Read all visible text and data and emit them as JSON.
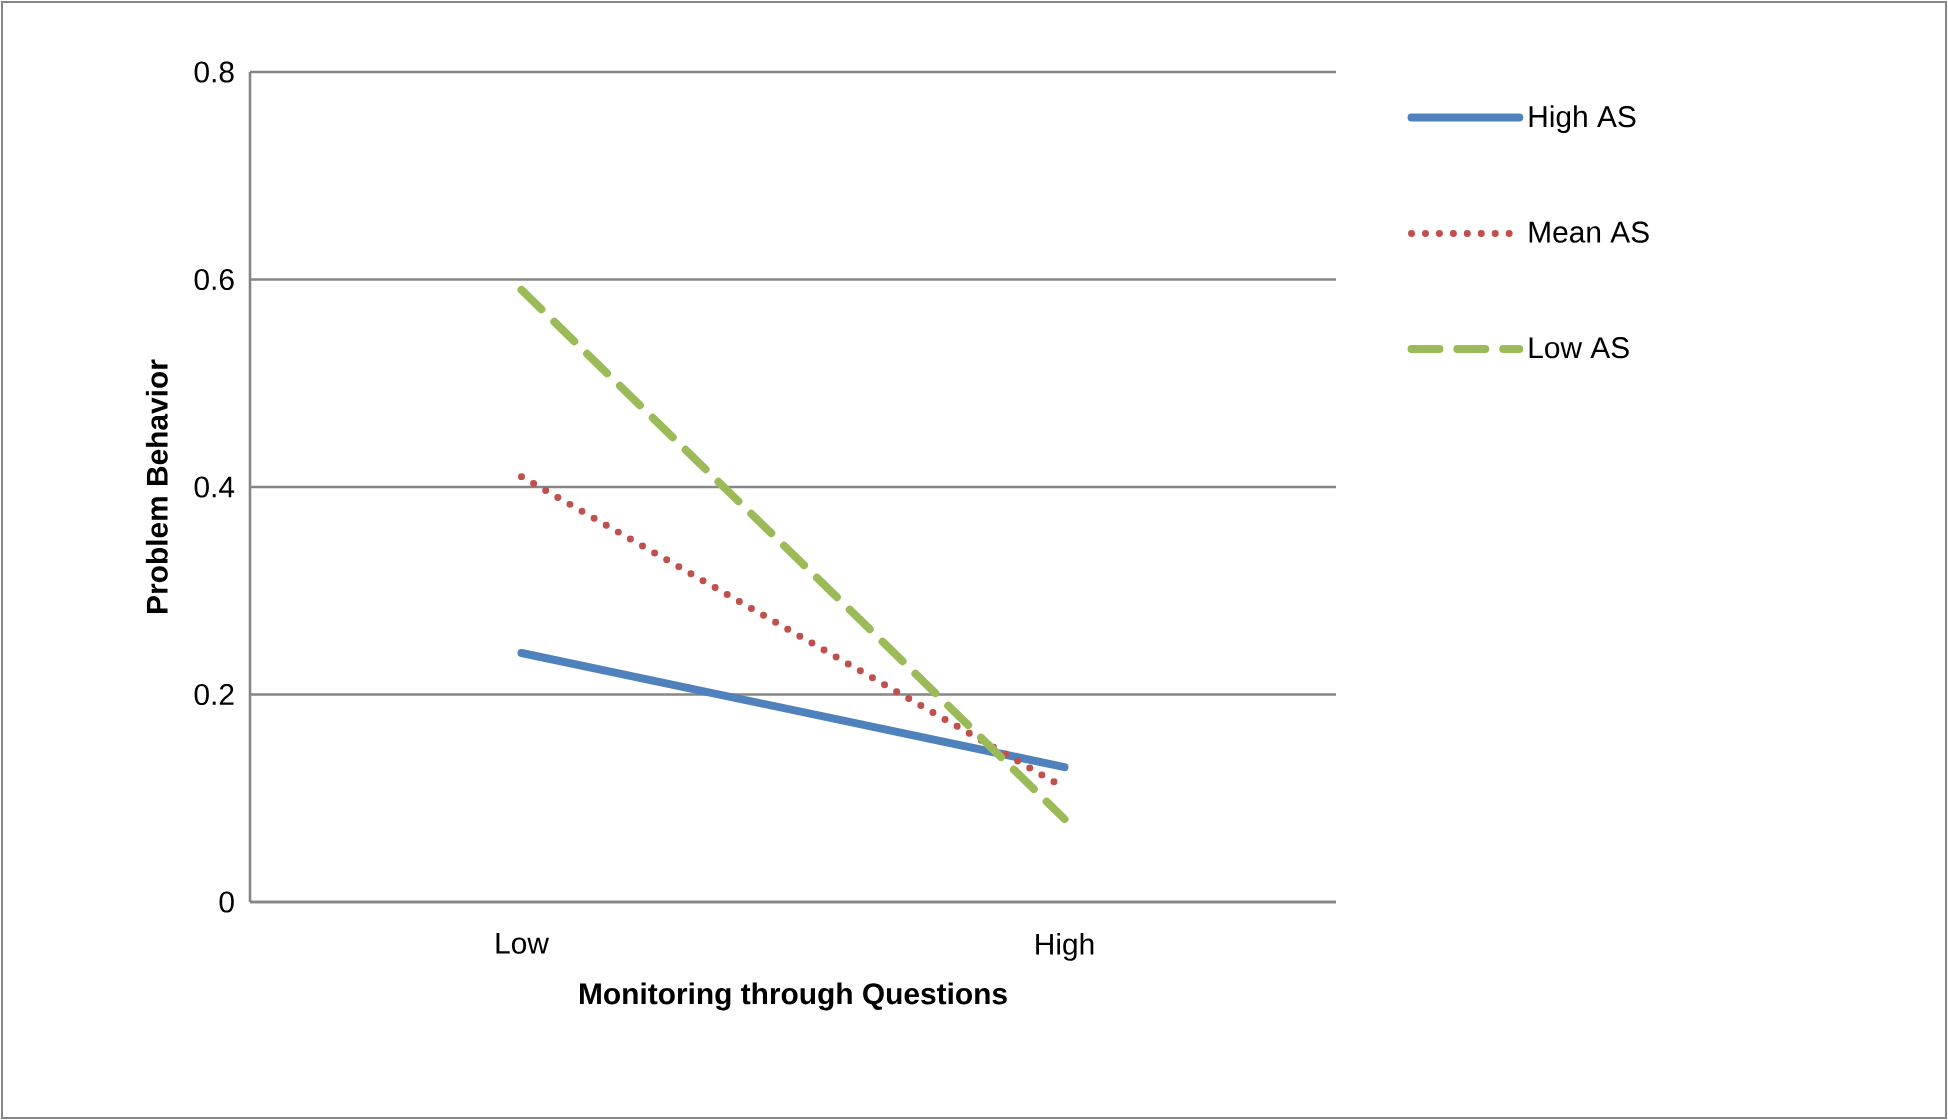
{
  "chart_data": {
    "type": "line",
    "xlabel": "Monitoring through Questions",
    "ylabel": "Problem Behavior",
    "categories": [
      "Low",
      "High"
    ],
    "series": [
      {
        "name": "High AS",
        "color": "#4f81bd",
        "line_style": "solid",
        "values": [
          0.24,
          0.13
        ]
      },
      {
        "name": "Mean AS",
        "color": "#c0504d",
        "line_style": "dotted",
        "values": [
          0.41,
          0.11
        ]
      },
      {
        "name": "Low AS",
        "color": "#9bbb59",
        "line_style": "dashed",
        "values": [
          0.59,
          0.08
        ]
      }
    ],
    "ylim": [
      0,
      0.8
    ],
    "yticks": [
      0,
      0.2,
      0.4,
      0.6,
      0.8
    ],
    "grid": "y",
    "legend": "right"
  }
}
